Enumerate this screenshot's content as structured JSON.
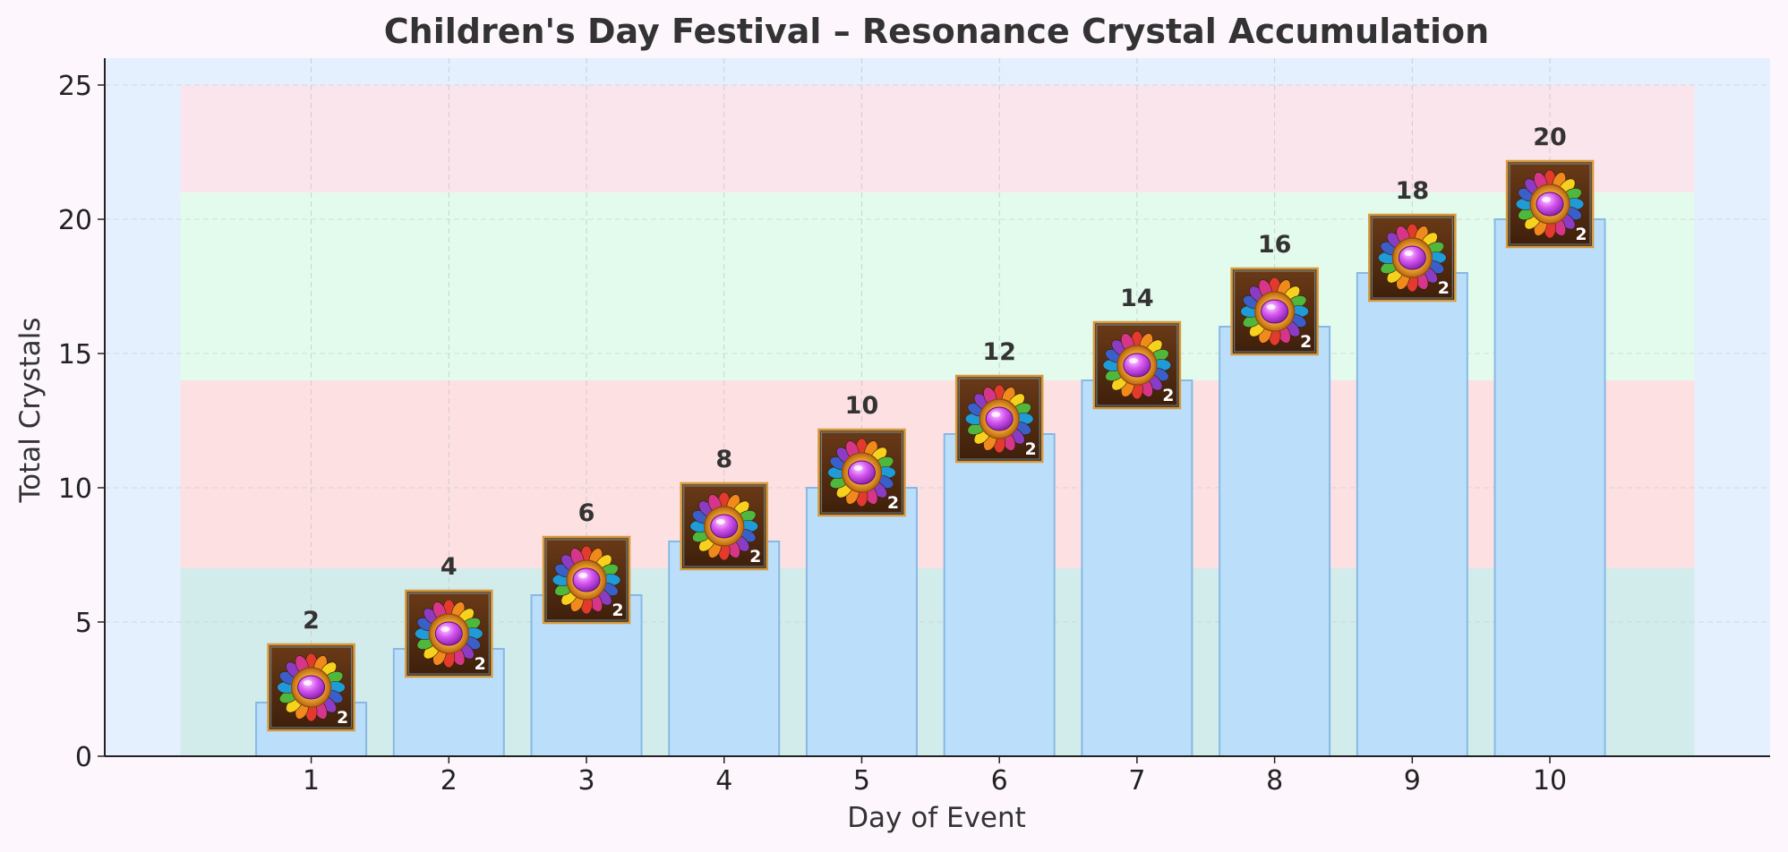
{
  "chart_data": {
    "type": "bar",
    "title": "Children's Day Festival – Resonance Crystal Accumulation",
    "xlabel": "Day of Event",
    "ylabel": "Total Crystals",
    "categories": [
      "1",
      "2",
      "3",
      "4",
      "5",
      "6",
      "7",
      "8",
      "9",
      "10"
    ],
    "values": [
      2,
      4,
      6,
      8,
      10,
      12,
      14,
      16,
      18,
      20
    ],
    "value_labels": [
      "2",
      "4",
      "6",
      "8",
      "10",
      "12",
      "14",
      "16",
      "18",
      "20"
    ],
    "x_range": [
      -0.5,
      11.6
    ],
    "ylim": [
      0,
      26
    ],
    "yticks": [
      0,
      5,
      10,
      15,
      20,
      25
    ],
    "ytick_labels": [
      "0",
      "5",
      "10",
      "15",
      "20",
      "25"
    ],
    "grid": true,
    "bands": [
      {
        "from": 0,
        "to": 7,
        "color": "#d2ecec"
      },
      {
        "from": 7,
        "to": 14,
        "color": "#fde0e2"
      },
      {
        "from": 14,
        "to": 21,
        "color": "#e3fbec"
      },
      {
        "from": 21,
        "to": 25,
        "color": "#fbe5ec"
      }
    ],
    "band_x_range": [
      0.05,
      11.05
    ],
    "marker_icon": "resonance-crystal-icon",
    "marker_badge": "2",
    "colors": {
      "background": "#fdf7fd",
      "plot_background": "#e4f0fe",
      "bar_fill": "#bbdffb",
      "bar_edge": "#88b8e4",
      "grid": "#c4c7cc",
      "axis": "#222222"
    }
  }
}
